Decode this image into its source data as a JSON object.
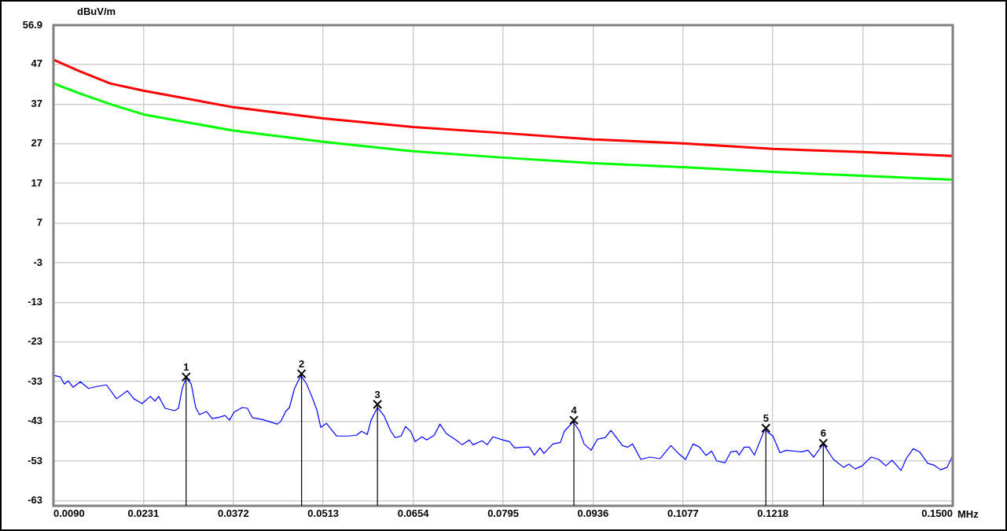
{
  "chart_data": {
    "type": "line",
    "xlabel": "MHz",
    "ylabel": "dBuV/m",
    "xlim": [
      0.009,
      0.15
    ],
    "xticks": [
      {
        "value": 0.009,
        "label": "0.0090"
      },
      {
        "value": 0.0231,
        "label": "0.0231"
      },
      {
        "value": 0.0372,
        "label": "0.0372"
      },
      {
        "value": 0.0513,
        "label": "0.0513"
      },
      {
        "value": 0.0654,
        "label": "0.0654"
      },
      {
        "value": 0.0795,
        "label": "0.0795"
      },
      {
        "value": 0.0936,
        "label": "0.0936"
      },
      {
        "value": 0.1077,
        "label": "0.1077"
      },
      {
        "value": 0.1218,
        "label": "0.1218"
      },
      {
        "value": 0.1359,
        "label": null
      },
      {
        "value": 0.15,
        "label": "0.1500"
      }
    ],
    "ylim": [
      -64.3,
      56.9
    ],
    "yticks": [
      56.9,
      47,
      37,
      27,
      17,
      7,
      -3,
      -13,
      -23,
      -33,
      -43,
      -53,
      -63
    ],
    "grid": true,
    "legend": false,
    "marker": "none",
    "line_style": "solid",
    "series": [
      {
        "color": "#ff0000",
        "x": [
          0.009,
          0.0129,
          0.0179,
          0.0231,
          0.0372,
          0.0513,
          0.0654,
          0.0795,
          0.0936,
          0.1077,
          0.1218,
          0.1359,
          0.15
        ],
        "values": [
          48.2,
          45.4,
          42.2,
          40.4,
          36.2,
          33.4,
          31.2,
          29.7,
          28.1,
          27.1,
          25.7,
          24.9,
          23.9
        ]
      },
      {
        "color": "#00ff00",
        "x": [
          0.009,
          0.0129,
          0.0179,
          0.0231,
          0.0372,
          0.0513,
          0.0654,
          0.0795,
          0.0936,
          0.1077,
          0.1218,
          0.1359,
          0.15
        ],
        "values": [
          42.2,
          39.8,
          37.0,
          34.4,
          30.3,
          27.5,
          25.1,
          23.5,
          22.1,
          21.1,
          19.9,
          18.9,
          17.9
        ]
      },
      {
        "color": "#0000ff",
        "x": [
          0.009,
          0.0101,
          0.0107,
          0.0113,
          0.0121,
          0.0132,
          0.0145,
          0.0158,
          0.0173,
          0.0189,
          0.0206,
          0.0216,
          0.0229,
          0.0242,
          0.0249,
          0.0255,
          0.0265,
          0.028,
          0.0286,
          0.0292,
          0.0298,
          0.0306,
          0.0313,
          0.0319,
          0.033,
          0.0339,
          0.0351,
          0.0359,
          0.0366,
          0.0373,
          0.0386,
          0.0394,
          0.0402,
          0.0417,
          0.0429,
          0.0441,
          0.0447,
          0.0454,
          0.046,
          0.0468,
          0.0478,
          0.0487,
          0.0495,
          0.0503,
          0.0509,
          0.0518,
          0.0534,
          0.0552,
          0.0565,
          0.0573,
          0.0582,
          0.0588,
          0.0598,
          0.0608,
          0.0619,
          0.0626,
          0.0635,
          0.0642,
          0.065,
          0.0657,
          0.0668,
          0.0675,
          0.0687,
          0.0696,
          0.0706,
          0.0721,
          0.0731,
          0.0742,
          0.0748,
          0.0762,
          0.077,
          0.0779,
          0.0795,
          0.0805,
          0.0813,
          0.0828,
          0.0836,
          0.0844,
          0.0853,
          0.0859,
          0.0873,
          0.0885,
          0.0891,
          0.0905,
          0.0915,
          0.0922,
          0.0933,
          0.0943,
          0.0955,
          0.0964,
          0.0971,
          0.0982,
          0.099,
          0.0998,
          0.1011,
          0.1025,
          0.1041,
          0.1058,
          0.107,
          0.1081,
          0.1093,
          0.1103,
          0.1113,
          0.1122,
          0.113,
          0.1143,
          0.1152,
          0.1161,
          0.1165,
          0.1173,
          0.1181,
          0.1189,
          0.1196,
          0.1205,
          0.1218,
          0.1229,
          0.1239,
          0.1263,
          0.1273,
          0.1282,
          0.1297,
          0.1313,
          0.1329,
          0.1337,
          0.1347,
          0.1358,
          0.1372,
          0.1384,
          0.1395,
          0.1405,
          0.1419,
          0.1427,
          0.1438,
          0.1448,
          0.1461,
          0.147,
          0.1481,
          0.1491,
          0.1499
        ],
        "values": [
          -31.4,
          -31.8,
          -33.6,
          -32.8,
          -34.4,
          -33.0,
          -34.7,
          -34.2,
          -33.8,
          -37.3,
          -35.3,
          -37.3,
          -38.5,
          -36.7,
          -37.9,
          -36.7,
          -39.7,
          -40.3,
          -39.7,
          -34.7,
          -32.0,
          -33.6,
          -39.5,
          -41.3,
          -40.5,
          -42.3,
          -41.9,
          -41.5,
          -42.7,
          -40.7,
          -39.5,
          -39.7,
          -42.1,
          -42.5,
          -43.1,
          -43.7,
          -42.9,
          -40.5,
          -39.5,
          -34.7,
          -31.4,
          -33.6,
          -36.7,
          -40.1,
          -44.5,
          -43.5,
          -46.7,
          -46.7,
          -46.5,
          -45.5,
          -46.3,
          -42.7,
          -39.5,
          -41.5,
          -45.5,
          -47.1,
          -46.7,
          -44.3,
          -45.5,
          -48.1,
          -46.9,
          -47.7,
          -46.5,
          -43.7,
          -46.1,
          -47.7,
          -48.9,
          -47.7,
          -48.9,
          -47.9,
          -48.9,
          -46.9,
          -47.7,
          -48.1,
          -49.7,
          -49.5,
          -49.5,
          -51.5,
          -49.7,
          -51.1,
          -48.7,
          -48.3,
          -45.5,
          -43.1,
          -45.5,
          -48.7,
          -50.3,
          -47.5,
          -47.1,
          -45.3,
          -46.7,
          -49.1,
          -49.5,
          -48.7,
          -52.6,
          -52.0,
          -52.4,
          -49.1,
          -51.1,
          -52.6,
          -48.7,
          -49.5,
          -51.6,
          -50.5,
          -53.0,
          -53.4,
          -50.7,
          -50.5,
          -51.5,
          -49.5,
          -49.5,
          -51.5,
          -48.7,
          -45.1,
          -46.7,
          -50.9,
          -50.3,
          -50.7,
          -50.3,
          -52.0,
          -48.7,
          -52.6,
          -54.6,
          -53.8,
          -55.0,
          -54.2,
          -52.0,
          -52.6,
          -54.2,
          -52.8,
          -55.4,
          -52.4,
          -49.9,
          -50.7,
          -53.6,
          -54.0,
          -55.2,
          -54.6,
          -52.0
        ]
      }
    ],
    "annotations": [
      {
        "text": "1",
        "x": 0.0298,
        "y": -31.8
      },
      {
        "text": "2",
        "x": 0.0479,
        "y": -31.0
      },
      {
        "text": "3",
        "x": 0.0598,
        "y": -38.7
      },
      {
        "text": "4",
        "x": 0.0906,
        "y": -42.7
      },
      {
        "text": "5",
        "x": 0.1207,
        "y": -44.7
      },
      {
        "text": "6",
        "x": 0.1297,
        "y": -48.5
      }
    ]
  }
}
